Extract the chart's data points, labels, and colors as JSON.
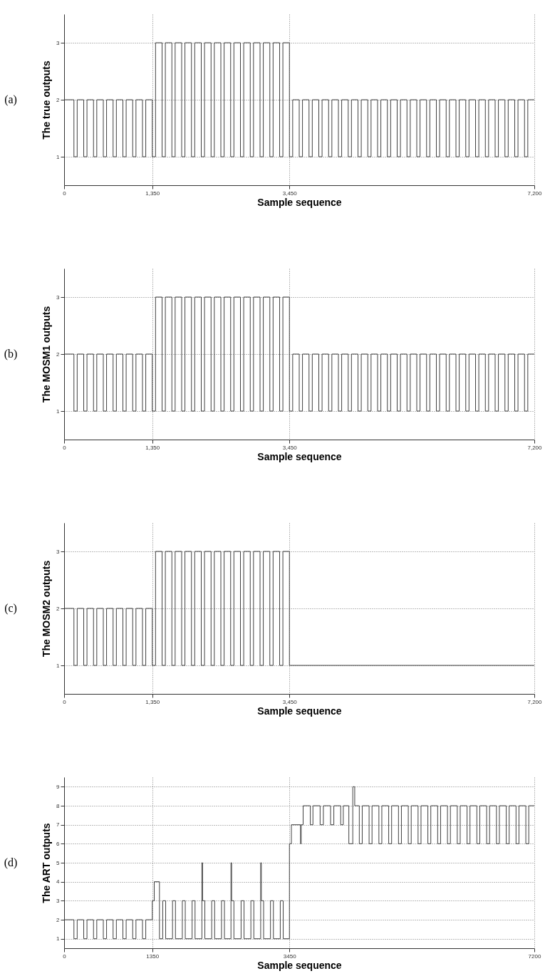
{
  "chart_data": [
    {
      "type": "step",
      "xlabel": "Sample sequence",
      "ylabel": "The true outputs",
      "annotations": [
        "(a)"
      ],
      "xlim": [
        0,
        7200
      ],
      "ylim": [
        0.5,
        3.5
      ],
      "xticks": [
        0,
        {
          "value": 1350,
          "label": "1,350"
        },
        {
          "value": 3450,
          "label": "3,450"
        },
        {
          "value": 7200,
          "label": "7,200"
        }
      ],
      "yticks": [
        1,
        2,
        3
      ],
      "grid": true,
      "series": [
        {
          "color": "#404040",
          "x": [
            0,
            150,
            200,
            300,
            350,
            450,
            500,
            600,
            650,
            750,
            800,
            900,
            950,
            1050,
            1100,
            1200,
            1250,
            1350,
            1400,
            1500,
            1550,
            1650,
            1700,
            1800,
            1850,
            1950,
            2000,
            2100,
            2150,
            2250,
            2300,
            2400,
            2450,
            2550,
            2600,
            2700,
            2750,
            2850,
            2900,
            3000,
            3050,
            3150,
            3200,
            3300,
            3350,
            3450,
            3500,
            3600,
            3650,
            3750,
            3800,
            3900,
            3950,
            4050,
            4100,
            4200,
            4250,
            4350,
            4400,
            4500,
            4550,
            4650,
            4700,
            4800,
            4850,
            4950,
            5000,
            5100,
            5150,
            5250,
            5300,
            5400,
            5450,
            5550,
            5600,
            5700,
            5750,
            5850,
            5900,
            6000,
            6050,
            6150,
            6200,
            6300,
            6350,
            6450,
            6500,
            6600,
            6650,
            6750,
            6800,
            6900,
            6950,
            7050,
            7100,
            7200
          ],
          "values": [
            2,
            1,
            2,
            1,
            2,
            1,
            2,
            1,
            2,
            1,
            2,
            1,
            2,
            1,
            2,
            1,
            2,
            1,
            3,
            1,
            3,
            1,
            3,
            1,
            3,
            1,
            3,
            1,
            3,
            1,
            3,
            1,
            3,
            1,
            3,
            1,
            3,
            1,
            3,
            1,
            3,
            1,
            3,
            1,
            3,
            1,
            2,
            1,
            2,
            1,
            2,
            1,
            2,
            1,
            2,
            1,
            2,
            1,
            2,
            1,
            2,
            1,
            2,
            1,
            2,
            1,
            2,
            1,
            2,
            1,
            2,
            1,
            2,
            1,
            2,
            1,
            2,
            1,
            2,
            1,
            2,
            1,
            2,
            1,
            2,
            1,
            2,
            1,
            2,
            1,
            2,
            1,
            2,
            1,
            2,
            2
          ]
        }
      ]
    },
    {
      "type": "step",
      "xlabel": "Sample sequence",
      "ylabel": "The MOSM1 outputs",
      "annotations": [
        "(b)"
      ],
      "xlim": [
        0,
        7200
      ],
      "ylim": [
        0.5,
        3.5
      ],
      "xticks": [
        0,
        {
          "value": 1350,
          "label": "1,350"
        },
        {
          "value": 3450,
          "label": "3,450"
        },
        {
          "value": 7200,
          "label": "7,200"
        }
      ],
      "yticks": [
        1,
        2,
        3
      ],
      "grid": true,
      "series": [
        {
          "color": "#404040",
          "x": [
            0,
            150,
            200,
            300,
            350,
            450,
            500,
            600,
            650,
            750,
            800,
            900,
            950,
            1050,
            1100,
            1200,
            1250,
            1350,
            1400,
            1500,
            1550,
            1650,
            1700,
            1800,
            1850,
            1950,
            2000,
            2100,
            2150,
            2250,
            2300,
            2400,
            2450,
            2550,
            2600,
            2700,
            2750,
            2850,
            2900,
            3000,
            3050,
            3150,
            3200,
            3300,
            3350,
            3450,
            3500,
            3600,
            3650,
            3750,
            3800,
            3900,
            3950,
            4050,
            4100,
            4200,
            4250,
            4350,
            4400,
            4500,
            4550,
            4650,
            4700,
            4800,
            4850,
            4950,
            5000,
            5100,
            5150,
            5250,
            5300,
            5400,
            5450,
            5550,
            5600,
            5700,
            5750,
            5850,
            5900,
            6000,
            6050,
            6150,
            6200,
            6300,
            6350,
            6450,
            6500,
            6600,
            6650,
            6750,
            6800,
            6900,
            6950,
            7050,
            7100,
            7200
          ],
          "values": [
            2,
            1,
            2,
            1,
            2,
            1,
            2,
            1,
            2,
            1,
            2,
            1,
            2,
            1,
            2,
            1,
            2,
            1,
            3,
            1,
            3,
            1,
            3,
            1,
            3,
            1,
            3,
            1,
            3,
            1,
            3,
            1,
            3,
            1,
            3,
            1,
            3,
            1,
            3,
            1,
            3,
            1,
            3,
            1,
            3,
            1,
            2,
            1,
            2,
            1,
            2,
            1,
            2,
            1,
            2,
            1,
            2,
            1,
            2,
            1,
            2,
            1,
            2,
            1,
            2,
            1,
            2,
            1,
            2,
            1,
            2,
            1,
            2,
            1,
            2,
            1,
            2,
            1,
            2,
            1,
            2,
            1,
            2,
            1,
            2,
            1,
            2,
            1,
            2,
            1,
            2,
            1,
            2,
            1,
            2,
            2
          ]
        }
      ]
    },
    {
      "type": "step",
      "xlabel": "Sample sequence",
      "ylabel": "The MOSM2 outputs",
      "annotations": [
        "(c)"
      ],
      "xlim": [
        0,
        7200
      ],
      "ylim": [
        0.5,
        3.5
      ],
      "xticks": [
        0,
        {
          "value": 1350,
          "label": "1,350"
        },
        {
          "value": 3450,
          "label": "3,450"
        },
        {
          "value": 7200,
          "label": "7,200"
        }
      ],
      "yticks": [
        1,
        2,
        3
      ],
      "grid": true,
      "series": [
        {
          "color": "#404040",
          "x": [
            0,
            150,
            200,
            300,
            350,
            450,
            500,
            600,
            650,
            750,
            800,
            900,
            950,
            1050,
            1100,
            1200,
            1250,
            1350,
            1400,
            1500,
            1550,
            1650,
            1700,
            1800,
            1850,
            1950,
            2000,
            2100,
            2150,
            2250,
            2300,
            2400,
            2450,
            2550,
            2600,
            2700,
            2750,
            2850,
            2900,
            3000,
            3050,
            3150,
            3200,
            3300,
            3350,
            3450,
            7200
          ],
          "values": [
            2,
            1,
            2,
            1,
            2,
            1,
            2,
            1,
            2,
            1,
            2,
            1,
            2,
            1,
            2,
            1,
            2,
            1,
            3,
            1,
            3,
            1,
            3,
            1,
            3,
            1,
            3,
            1,
            3,
            1,
            3,
            1,
            3,
            1,
            3,
            1,
            3,
            1,
            3,
            1,
            3,
            1,
            3,
            1,
            3,
            1,
            1
          ]
        }
      ]
    },
    {
      "type": "step",
      "xlabel": "Sample sequence",
      "ylabel": "The ART outputs",
      "annotations": [
        "(d)"
      ],
      "xlim": [
        0,
        7200
      ],
      "ylim": [
        0.5,
        9.5
      ],
      "xticks": [
        0,
        1350,
        3450,
        7200
      ],
      "yticks": [
        1,
        2,
        3,
        4,
        5,
        6,
        7,
        8,
        9
      ],
      "grid": true,
      "series": [
        {
          "color": "#404040",
          "x": [
            0,
            150,
            200,
            300,
            350,
            450,
            500,
            600,
            650,
            750,
            800,
            900,
            950,
            1050,
            1100,
            1200,
            1250,
            1350,
            1380,
            1460,
            1510,
            1555,
            1660,
            1705,
            1810,
            1855,
            1960,
            2005,
            2110,
            2120,
            2155,
            2260,
            2305,
            2410,
            2455,
            2555,
            2565,
            2600,
            2710,
            2755,
            2860,
            2905,
            3010,
            3020,
            3055,
            3160,
            3205,
            3310,
            3355,
            3450,
            3480,
            3620,
            3630,
            3660,
            3770,
            3810,
            3920,
            3970,
            4080,
            4130,
            4235,
            4275,
            4360,
            4420,
            4450,
            4520,
            4565,
            4670,
            4715,
            4820,
            4865,
            4970,
            5015,
            5120,
            5165,
            5270,
            5315,
            5420,
            5465,
            5570,
            5615,
            5720,
            5765,
            5870,
            5915,
            6020,
            6065,
            6170,
            6215,
            6320,
            6365,
            6470,
            6515,
            6620,
            6665,
            6770,
            6815,
            6920,
            6965,
            7070,
            7115,
            7200
          ],
          "values": [
            2,
            1,
            2,
            1,
            2,
            1,
            2,
            1,
            2,
            1,
            2,
            1,
            2,
            1,
            2,
            1,
            2,
            3,
            4,
            1,
            3,
            1,
            3,
            1,
            3,
            1,
            3,
            1,
            5,
            3,
            1,
            3,
            1,
            3,
            1,
            5,
            3,
            1,
            3,
            1,
            3,
            1,
            5,
            3,
            1,
            3,
            1,
            3,
            1,
            6,
            7,
            6,
            7,
            8,
            7,
            8,
            7,
            8,
            7,
            8,
            7,
            8,
            6,
            9,
            8,
            6,
            8,
            6,
            8,
            6,
            8,
            6,
            8,
            6,
            8,
            6,
            8,
            6,
            8,
            6,
            8,
            6,
            8,
            6,
            8,
            6,
            8,
            6,
            8,
            6,
            8,
            6,
            8,
            6,
            8,
            6,
            8,
            6,
            8,
            6,
            8,
            8
          ]
        }
      ]
    }
  ]
}
